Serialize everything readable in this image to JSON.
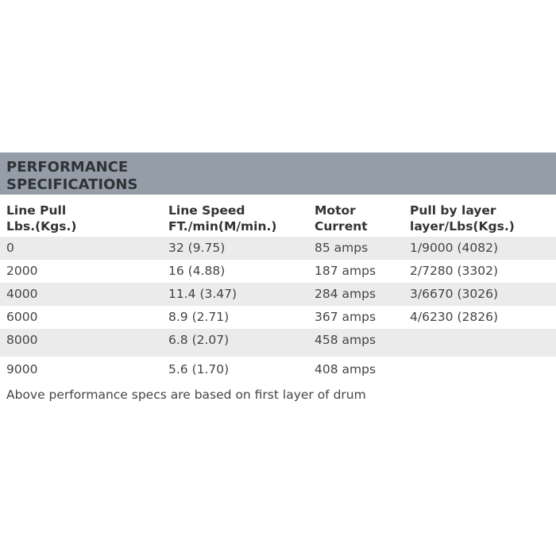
{
  "title": "PERFORMANCE SPECIFICATIONS",
  "headers": [
    "Line Pull\nLbs.(Kgs.)",
    "Line Speed\nFT./min(M/min.)",
    "Motor\nCurrent",
    "Pull by layer\nlayer/Lbs(Kgs.)"
  ],
  "header_lines": [
    [
      "Line Pull",
      "Lbs.(Kgs.)"
    ],
    [
      "Line Speed",
      "FT./min(M/min.)"
    ],
    [
      "Motor",
      "Current"
    ],
    [
      "Pull by layer",
      "layer/Lbs(Kgs.)"
    ]
  ],
  "rows": [
    [
      "0",
      "32 (9.75)",
      "85 amps",
      "1/9000 (4082)"
    ],
    [
      "2000",
      "16 (4.88)",
      "187 amps",
      "2/7280 (3302)"
    ],
    [
      "4000",
      "11.4 (3.47)",
      "284 amps",
      "3/6670 (3026)"
    ],
    [
      "6000",
      "8.9 (2.71)",
      "367 amps",
      "4/6230 (2826)"
    ],
    [
      "8000",
      "6.8 (2.07)",
      "458 amps",
      ""
    ],
    [
      "9000",
      "5.6 (1.70)",
      "408 amps",
      ""
    ]
  ],
  "note": "Above performance specs are based on first layer of drum",
  "colors": {
    "title_band": "#959ea8",
    "row_shade": "#ebebeb"
  }
}
